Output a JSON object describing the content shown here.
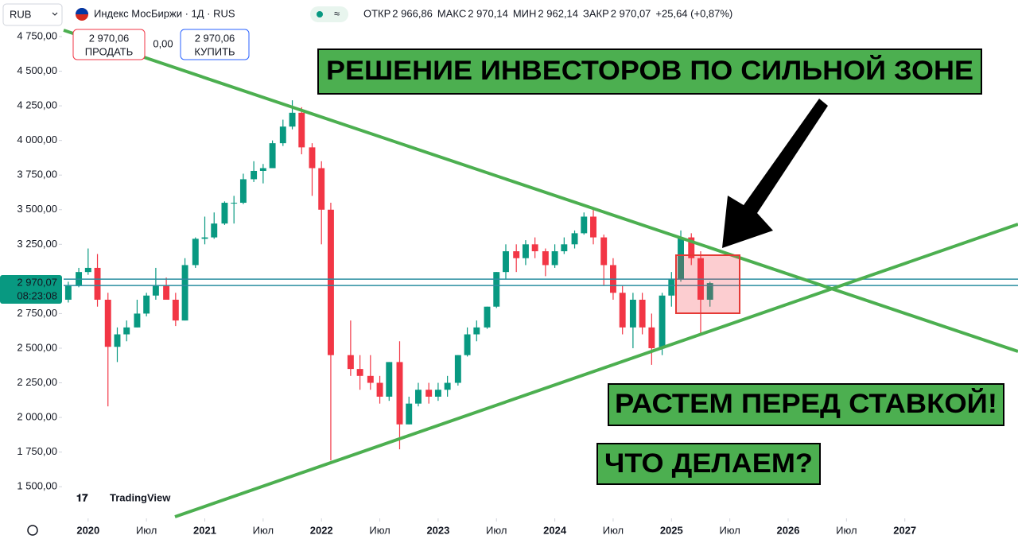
{
  "header": {
    "currency": "RUB",
    "title": "Индекс МосБиржи · 1Д · RUS",
    "ohlc": [
      {
        "label": "ОТКР",
        "value": "2 966,86"
      },
      {
        "label": "МАКС",
        "value": "2 970,14"
      },
      {
        "label": "МИН",
        "value": "2 962,14"
      },
      {
        "label": "ЗАКР",
        "value": "2 970,07"
      }
    ],
    "change": "+25,64 (+0,87%)"
  },
  "trading_panel": {
    "sell_price": "2 970,06",
    "sell_label": "ПРОДАТЬ",
    "spread": "0,00",
    "buy_price": "2 970,06",
    "buy_label": "КУПИТЬ"
  },
  "price_label": {
    "price": "2 970,07",
    "countdown": "08:23:08"
  },
  "logo": "TradingView",
  "annotations": [
    "РЕШЕНИЕ ИНВЕСТОРОВ ПО СИЛЬНОЙ ЗОНЕ",
    "РАСТЕМ ПЕРЕД СТАВКОЙ!",
    "ЧТО ДЕЛАЕМ?"
  ],
  "chart_data": {
    "type": "candlestick",
    "up_color": "#089981",
    "down_color": "#f23645",
    "xlim": [
      2019.79,
      2027.97
    ],
    "ylim": [
      1283,
      5014
    ],
    "xticks": [
      {
        "value": 2020,
        "label": "2020"
      },
      {
        "value": 2020.5,
        "label": "Июл"
      },
      {
        "value": 2021,
        "label": "2021"
      },
      {
        "value": 2021.5,
        "label": "Июл"
      },
      {
        "value": 2022,
        "label": "2022"
      },
      {
        "value": 2022.5,
        "label": "Июл"
      },
      {
        "value": 2023,
        "label": "2023"
      },
      {
        "value": 2023.5,
        "label": "Июл"
      },
      {
        "value": 2024,
        "label": "2024"
      },
      {
        "value": 2024.5,
        "label": "Июл"
      },
      {
        "value": 2025,
        "label": "2025"
      },
      {
        "value": 2025.5,
        "label": "Июл"
      },
      {
        "value": 2026,
        "label": "2026"
      },
      {
        "value": 2026.5,
        "label": "Июл"
      },
      {
        "value": 2027,
        "label": "2027"
      }
    ],
    "yticks": [
      {
        "value": 1500,
        "label": "1 500,00"
      },
      {
        "value": 1750,
        "label": "1 750,00"
      },
      {
        "value": 2000,
        "label": "2 000,00"
      },
      {
        "value": 2250,
        "label": "2 250,00"
      },
      {
        "value": 2500,
        "label": "2 500,00"
      },
      {
        "value": 2750,
        "label": "2 750,00"
      },
      {
        "value": 3250,
        "label": "3 250,00"
      },
      {
        "value": 3500,
        "label": "3 500,00"
      },
      {
        "value": 3750,
        "label": "3 750,00"
      },
      {
        "value": 4000,
        "label": "4 000,00"
      },
      {
        "value": 4250,
        "label": "4 250,00"
      },
      {
        "value": 4500,
        "label": "4 500,00"
      },
      {
        "value": 4750,
        "label": "4 750,00"
      }
    ],
    "x": [
      2019.83,
      2019.92,
      2020.0,
      2020.08,
      2020.17,
      2020.25,
      2020.33,
      2020.42,
      2020.5,
      2020.58,
      2020.67,
      2020.75,
      2020.83,
      2020.92,
      2021.0,
      2021.08,
      2021.17,
      2021.25,
      2021.33,
      2021.42,
      2021.5,
      2021.58,
      2021.67,
      2021.75,
      2021.83,
      2021.92,
      2022.0,
      2022.08,
      2022.25,
      2022.33,
      2022.42,
      2022.5,
      2022.58,
      2022.67,
      2022.75,
      2022.83,
      2022.92,
      2023.0,
      2023.08,
      2023.17,
      2023.25,
      2023.33,
      2023.42,
      2023.5,
      2023.58,
      2023.67,
      2023.75,
      2023.83,
      2023.92,
      2024.0,
      2024.08,
      2024.17,
      2024.25,
      2024.33,
      2024.42,
      2024.5,
      2024.58,
      2024.67,
      2024.75,
      2024.83,
      2024.92,
      2025.0,
      2025.08,
      2025.17,
      2025.25,
      2025.33
    ],
    "open": [
      2850,
      2950,
      3050,
      3080,
      2850,
      2510,
      2600,
      2650,
      2750,
      2880,
      2950,
      2850,
      2700,
      3100,
      3290,
      3300,
      3400,
      3550,
      3550,
      3720,
      3780,
      3800,
      3980,
      4100,
      4200,
      3950,
      3800,
      3500,
      2450,
      2350,
      2300,
      2250,
      2150,
      2400,
      1950,
      2100,
      2200,
      2150,
      2200,
      2250,
      2450,
      2600,
      2650,
      2800,
      3050,
      3200,
      3150,
      3250,
      3200,
      3100,
      3200,
      3250,
      3330,
      3450,
      3300,
      3100,
      2900,
      2650,
      2850,
      2650,
      2500,
      2880,
      3000,
      3300,
      3150,
      2850
    ],
    "high": [
      2980,
      3080,
      3220,
      3180,
      2900,
      2650,
      2700,
      2850,
      2900,
      3080,
      3010,
      2900,
      3150,
      3300,
      3450,
      3480,
      3560,
      3600,
      3760,
      3850,
      3830,
      4000,
      4150,
      4290,
      4240,
      3980,
      3850,
      3550,
      2700,
      2450,
      2450,
      2300,
      2400,
      2550,
      2150,
      2250,
      2250,
      2250,
      2300,
      2450,
      2650,
      2700,
      2800,
      3050,
      3250,
      3250,
      3280,
      3300,
      3220,
      3250,
      3300,
      3350,
      3480,
      3510,
      3320,
      3150,
      2950,
      2900,
      2900,
      2750,
      2900,
      3050,
      3350,
      3330,
      3200,
      2980
    ],
    "low": [
      2830,
      2940,
      3030,
      2800,
      2080,
      2400,
      2550,
      2650,
      2730,
      2850,
      2850,
      2660,
      2700,
      3080,
      3250,
      3290,
      3390,
      3400,
      3540,
      3700,
      3690,
      3800,
      3960,
      4080,
      3900,
      3600,
      3250,
      1690,
      2300,
      2200,
      2200,
      2100,
      2120,
      1770,
      1950,
      2080,
      2100,
      2120,
      2150,
      2230,
      2440,
      2550,
      2640,
      2790,
      3000,
      3050,
      3100,
      3150,
      3020,
      3080,
      3180,
      3220,
      3320,
      3250,
      2950,
      2850,
      2600,
      2500,
      2600,
      2380,
      2450,
      2800,
      2980,
      3100,
      2600,
      2800
    ],
    "close": [
      2950,
      3050,
      3080,
      2850,
      2510,
      2600,
      2650,
      2750,
      2880,
      2950,
      2850,
      2700,
      3100,
      3290,
      3300,
      3400,
      3550,
      3550,
      3720,
      3780,
      3800,
      3980,
      4100,
      4200,
      3950,
      3800,
      3500,
      2450,
      2350,
      2300,
      2250,
      2150,
      2400,
      1950,
      2100,
      2200,
      2150,
      2200,
      2250,
      2450,
      2600,
      2650,
      2800,
      3050,
      3200,
      3150,
      3250,
      3200,
      3100,
      3200,
      3250,
      3330,
      3450,
      3300,
      3100,
      2900,
      2650,
      2850,
      2650,
      2500,
      2880,
      3000,
      3300,
      3150,
      2850,
      2970
    ]
  }
}
